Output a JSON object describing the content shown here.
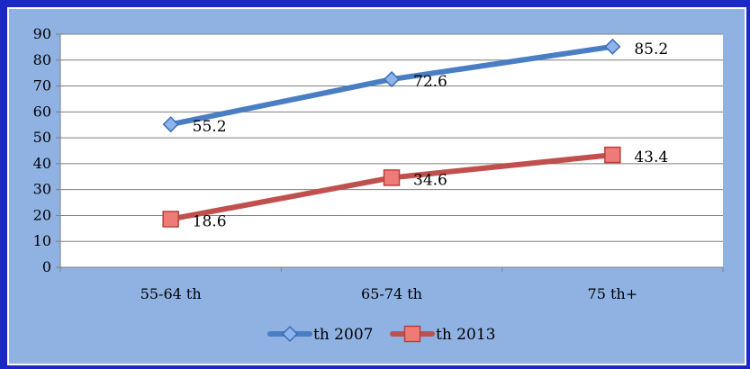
{
  "chart_data": {
    "type": "line",
    "categories": [
      "55-64 th",
      "65-74 th",
      "75 th+"
    ],
    "series": [
      {
        "name": "th 2007",
        "values": [
          55.2,
          72.6,
          85.2
        ],
        "color": "#4a7ec4",
        "marker": "diamond"
      },
      {
        "name": "th 2013",
        "values": [
          18.6,
          34.6,
          43.4
        ],
        "color": "#c0504d",
        "marker": "square"
      }
    ],
    "ylim": [
      0,
      90
    ],
    "yticks": [
      0,
      10,
      20,
      30,
      40,
      50,
      60,
      70,
      80,
      90
    ],
    "grid": true,
    "data_labels": true,
    "legend_position": "bottom",
    "plot_background": "#ffffff",
    "chart_background": "#8fb2e3",
    "border_color": "#1f2fd6"
  }
}
